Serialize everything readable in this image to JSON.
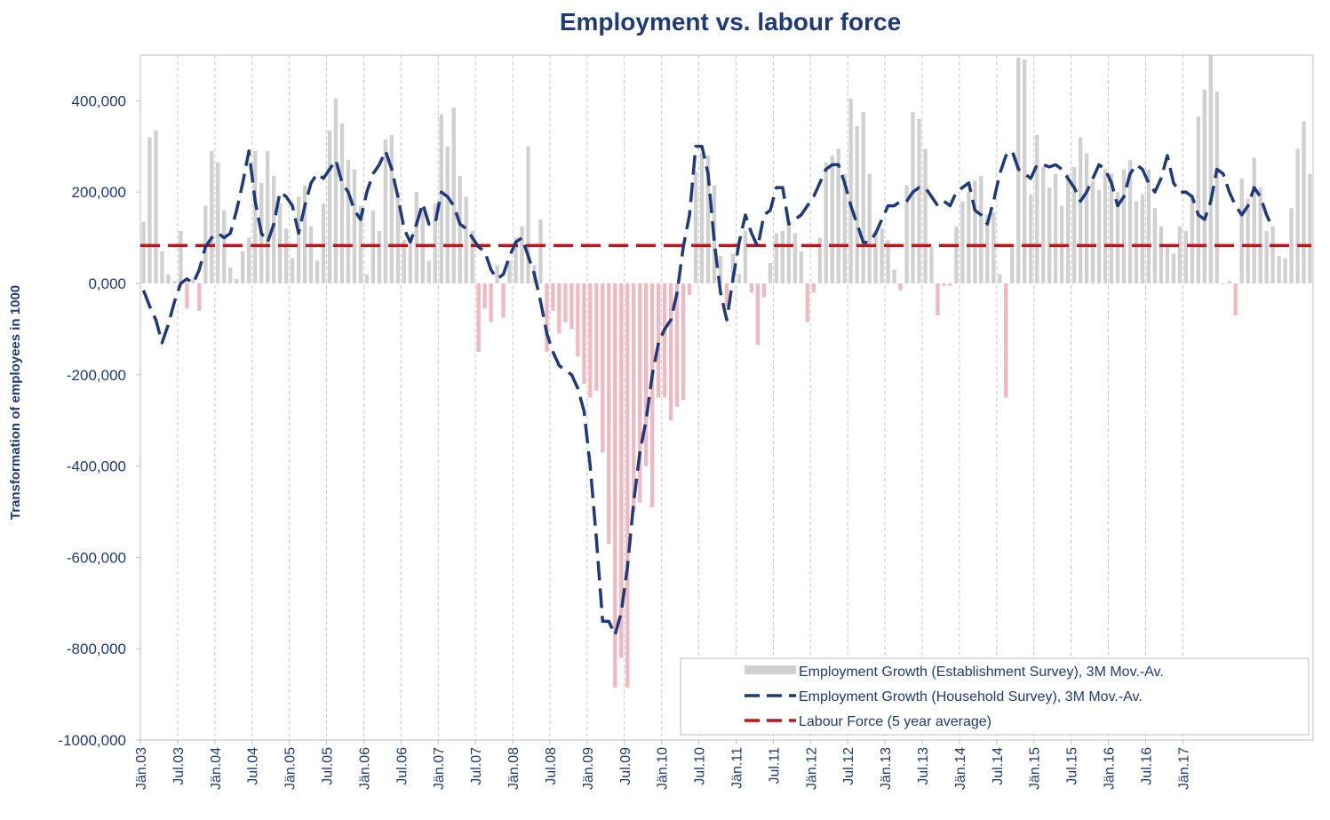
{
  "chart_data": {
    "type": "bar+line",
    "title": "Employment vs. labour force",
    "xlabel": "",
    "ylabel": "Transformation of employees in 1000",
    "ylim": [
      -1000000,
      500000
    ],
    "yticks": [
      400000,
      200000,
      0,
      -200000,
      -400000,
      -600000,
      -800000,
      -1000000
    ],
    "ytick_labels": [
      "400,000",
      "200,000",
      "0,000",
      "-200,000",
      "-400,000",
      "-600,000",
      "-800,000",
      "-1000,000"
    ],
    "xtick_labels": [
      "Jän.03",
      "Jul.03",
      "Jän.04",
      "Jul.04",
      "Jän.05",
      "Jul.05",
      "Jän.06",
      "Jul.06",
      "Jän.07",
      "Jul.07",
      "Jän.08",
      "Jul.08",
      "Jän.09",
      "Jul.09",
      "Jän.10",
      "Jul.10",
      "Jän.11",
      "Jul.11",
      "Jän.12",
      "Jul.12",
      "Jän.13",
      "Jul.13",
      "Jän.14",
      "Jul.14",
      "Jän.15",
      "Jul.15",
      "Jän.16",
      "Jul.16",
      "Jän.17"
    ],
    "months_start": "2003-01",
    "positive_bar_color": "#d0d0d0",
    "negative_bar_color": "#f0b8c0",
    "household_line_color": "#1f3a7a",
    "labour_force_color": "#c0141c",
    "legend": [
      {
        "label": "Employment Growth (Establishment Survey), 3M Mov.-Av.",
        "style": "bar"
      },
      {
        "label": "Employment Growth (Household Survey), 3M Mov.-Av.",
        "style": "dashed-blue"
      },
      {
        "label": "Labour Force (5 year  average)",
        "style": "dashed-red"
      }
    ],
    "series": [
      {
        "name": "Employment Growth (Establishment Survey), 3M Mov.-Av.",
        "type": "bar",
        "values": [
          135000,
          320000,
          335000,
          70000,
          20000,
          5000,
          115000,
          -55000,
          10000,
          -60000,
          170000,
          290000,
          265000,
          160000,
          35000,
          10000,
          70000,
          100000,
          290000,
          220000,
          290000,
          235000,
          175000,
          120000,
          55000,
          190000,
          215000,
          125000,
          50000,
          175000,
          335000,
          405000,
          350000,
          270000,
          250000,
          170000,
          20000,
          160000,
          115000,
          315000,
          325000,
          200000,
          95000,
          85000,
          200000,
          165000,
          50000,
          175000,
          370000,
          300000,
          385000,
          235000,
          190000,
          115000,
          -150000,
          -55000,
          -85000,
          40000,
          -75000,
          50000,
          100000,
          125000,
          300000,
          40000,
          140000,
          -150000,
          -60000,
          -110000,
          -85000,
          -100000,
          -160000,
          -220000,
          -250000,
          -235000,
          -370000,
          -570000,
          -885000,
          -820000,
          -885000,
          -500000,
          -480000,
          -400000,
          -490000,
          -250000,
          -250000,
          -300000,
          -270000,
          -255000,
          -25000,
          245000,
          285000,
          280000,
          215000,
          60000,
          -50000,
          65000,
          20000,
          115000,
          -20000,
          -135000,
          -30000,
          45000,
          110000,
          115000,
          135000,
          110000,
          70000,
          -85000,
          -20000,
          100000,
          265000,
          280000,
          295000,
          240000,
          405000,
          345000,
          375000,
          240000,
          115000,
          120000,
          95000,
          30000,
          -15000,
          215000,
          375000,
          360000,
          295000,
          80000,
          -70000,
          -5000,
          -5000,
          125000,
          180000,
          200000,
          225000,
          235000,
          150000,
          155000,
          20000,
          -250000,
          80000,
          495000,
          490000,
          195000,
          325000,
          255000,
          210000,
          240000,
          170000,
          240000,
          255000,
          320000,
          285000,
          225000,
          205000,
          250000,
          240000,
          200000,
          250000,
          270000,
          180000,
          195000,
          250000,
          165000,
          125000,
          85000,
          65000,
          125000,
          115000,
          195000,
          365000,
          425000,
          500000,
          420000,
          -2000,
          5000,
          -70000,
          230000,
          185000,
          275000,
          210000,
          115000,
          125000,
          60000,
          55000,
          165000,
          295000,
          355000,
          240000
        ]
      },
      {
        "name": "Employment Growth (Household Survey), 3M Mov.-Av.",
        "type": "line",
        "values": [
          -15000,
          -50000,
          -80000,
          -130000,
          -90000,
          -40000,
          0,
          10000,
          0,
          30000,
          80000,
          100000,
          110000,
          100000,
          110000,
          160000,
          220000,
          290000,
          180000,
          110000,
          90000,
          130000,
          200000,
          190000,
          170000,
          110000,
          170000,
          220000,
          240000,
          230000,
          250000,
          270000,
          220000,
          200000,
          160000,
          140000,
          200000,
          240000,
          260000,
          290000,
          250000,
          190000,
          120000,
          90000,
          130000,
          175000,
          130000,
          130000,
          200000,
          190000,
          170000,
          130000,
          120000,
          100000,
          80000,
          70000,
          30000,
          10000,
          20000,
          60000,
          90000,
          100000,
          60000,
          20000,
          -40000,
          -110000,
          -150000,
          -180000,
          -190000,
          -200000,
          -230000,
          -280000,
          -400000,
          -560000,
          -740000,
          -740000,
          -770000,
          -720000,
          -620000,
          -480000,
          -370000,
          -300000,
          -200000,
          -130000,
          -100000,
          -80000,
          -20000,
          80000,
          150000,
          300000,
          300000,
          240000,
          90000,
          -20000,
          -80000,
          10000,
          90000,
          150000,
          110000,
          80000,
          150000,
          160000,
          210000,
          210000,
          130000,
          140000,
          150000,
          170000,
          190000,
          220000,
          250000,
          260000,
          260000,
          220000,
          170000,
          130000,
          90000,
          90000,
          110000,
          140000,
          170000,
          170000,
          180000,
          180000,
          200000,
          210000,
          210000,
          190000,
          170000,
          180000,
          170000,
          200000,
          210000,
          220000,
          160000,
          150000,
          130000,
          180000,
          240000,
          280000,
          290000,
          250000,
          240000,
          230000,
          260000,
          260000,
          255000,
          260000,
          250000,
          230000,
          210000,
          180000,
          200000,
          230000,
          260000,
          250000,
          220000,
          170000,
          190000,
          240000,
          260000,
          250000,
          220000,
          200000,
          230000,
          280000,
          220000,
          200000,
          200000,
          190000,
          150000,
          140000,
          180000,
          250000,
          240000,
          200000,
          170000,
          150000,
          170000,
          210000,
          190000,
          150000,
          120000
        ]
      },
      {
        "name": "Labour Force (5 year  average)",
        "type": "line",
        "values": [
          83000
        ]
      }
    ]
  }
}
